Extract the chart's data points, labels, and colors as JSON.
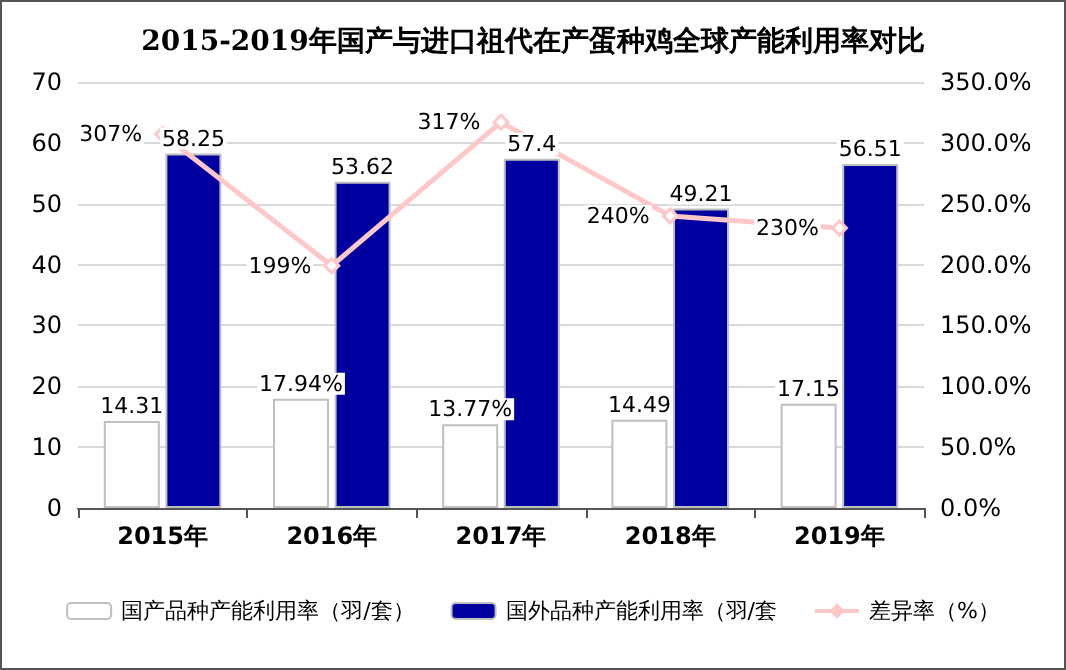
{
  "chart_data": {
    "type": "bar",
    "title": "2015-2019年国产与进口祖代在产蛋种鸡全球产能利用率对比",
    "categories": [
      "2015年",
      "2016年",
      "2017年",
      "2018年",
      "2019年"
    ],
    "series": [
      {
        "name": "国产品种产能利用率（羽/套）",
        "color": "#ffffff",
        "values": [
          14.31,
          17.94,
          13.77,
          14.49,
          17.15
        ],
        "value_labels": [
          "14.31",
          "17.94%",
          "13.77%",
          "14.49",
          "17.15"
        ]
      },
      {
        "name": "国外品种产能利用率（羽/套",
        "color": "#0000a0",
        "values": [
          58.25,
          53.62,
          57.4,
          49.21,
          56.51
        ],
        "value_labels": [
          "58.25",
          "53.62",
          "57.4",
          "49.21",
          "56.51"
        ]
      },
      {
        "name": "差异率（%）",
        "type": "line",
        "axis": "y2",
        "color": "#ffc8c8",
        "marker": "diamond",
        "values": [
          307,
          199,
          317,
          240,
          230
        ],
        "value_labels": [
          "307%",
          "199%",
          "317%",
          "240%",
          "230%"
        ]
      }
    ],
    "ylim": [
      0,
      70
    ],
    "yticks": [
      0,
      10,
      20,
      30,
      40,
      50,
      60,
      70
    ],
    "y2lim": [
      0,
      350
    ],
    "y2ticks": [
      {
        "value": 0,
        "label": "0.0%"
      },
      {
        "value": 50,
        "label": "50.0%"
      },
      {
        "value": 100,
        "label": "100.0%"
      },
      {
        "value": 150,
        "label": "150.0%"
      },
      {
        "value": 200,
        "label": "200.0%"
      },
      {
        "value": 250,
        "label": "250.0%"
      },
      {
        "value": 300,
        "label": "300.0%"
      },
      {
        "value": 350,
        "label": "350.0%"
      }
    ],
    "grid": "y",
    "legend": "bottom"
  }
}
